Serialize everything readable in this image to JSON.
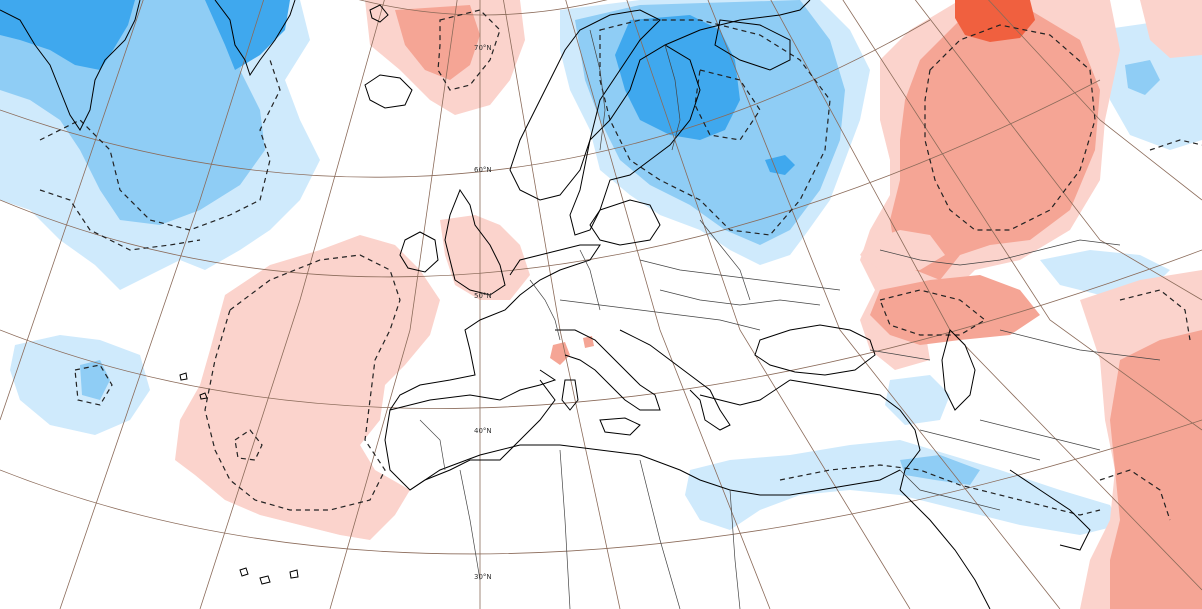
{
  "map": {
    "latitude_labels": [
      "70°N",
      "60°N",
      "50°N",
      "40°N",
      "30°N"
    ],
    "anomaly_colors": {
      "cold_light": "#cfeafc",
      "cold_medium": "#8fcdf5",
      "cold_strong": "#3fa8ee",
      "warm_light": "#fbd3cc",
      "warm_medium": "#f5a595",
      "warm_strong": "#f0603f"
    },
    "contour_style": "dashed",
    "graticule_color": "#8b6b5a",
    "coastline_color": "#000000",
    "border_color": "#444444"
  }
}
